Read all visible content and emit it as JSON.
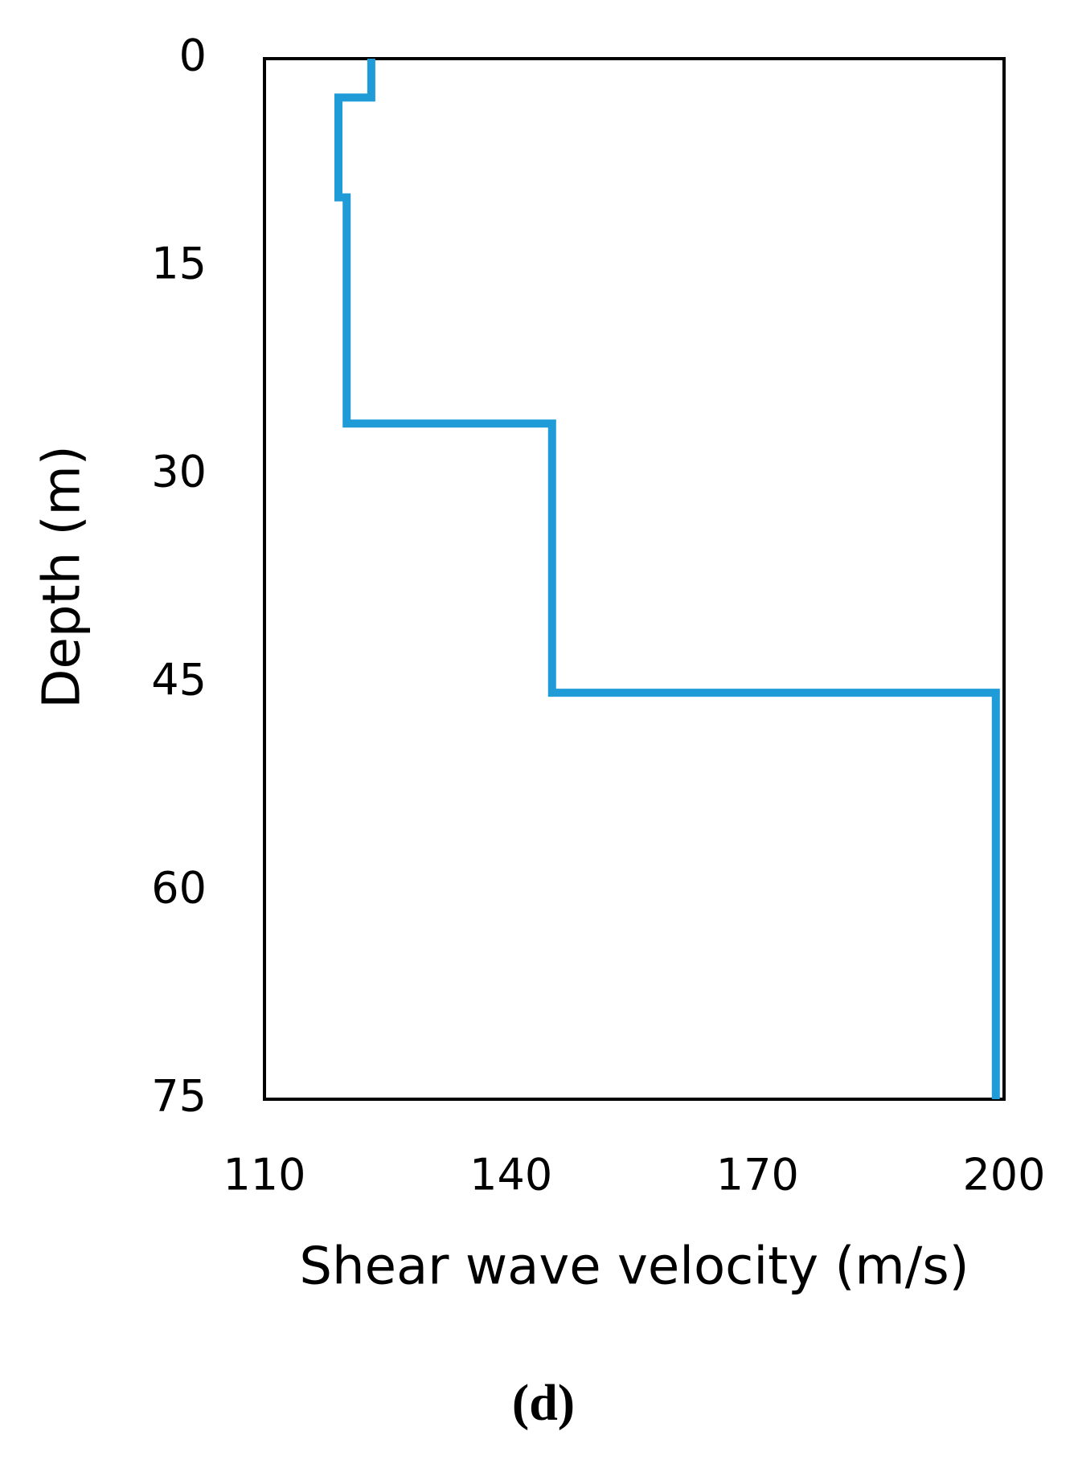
{
  "chart_data": {
    "type": "line",
    "x_label": "Shear wave velocity (m/s)",
    "y_label": "Depth (m)",
    "panel_label": "(d)",
    "x": [
      123,
      123,
      119,
      119,
      120,
      120,
      145,
      145,
      199,
      199
    ],
    "values": [
      0,
      2.8,
      2.8,
      10,
      10,
      26.3,
      26.3,
      45.7,
      45.7,
      75
    ],
    "color": "#1f9bd7",
    "xlim": [
      110,
      200
    ],
    "xticks": [
      110,
      140,
      170,
      200
    ],
    "ylim": [
      0,
      75
    ],
    "yticks": [
      0,
      15,
      30,
      45,
      60,
      75
    ],
    "y_inverted": true
  }
}
